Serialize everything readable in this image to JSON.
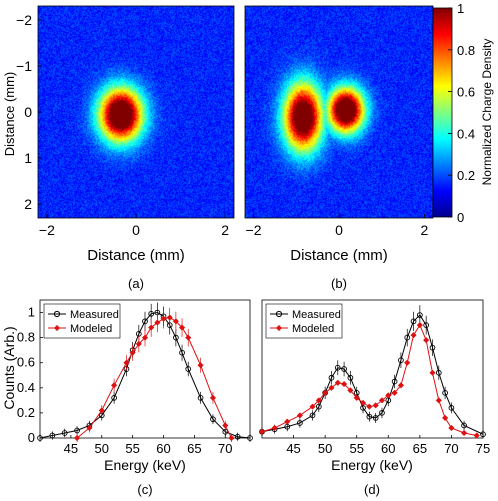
{
  "chart_data": [
    {
      "type": "heatmap",
      "panel": "(a)",
      "xlabel": "Distance (mm)",
      "ylabel": "Distance (mm)",
      "xlim": [
        -2.2,
        2.2
      ],
      "ylim": [
        -2.3,
        2.3
      ],
      "y_reversed": true,
      "xticks": [
        -2,
        0,
        2
      ],
      "yticks": [
        -2,
        -1,
        0,
        1,
        2
      ],
      "blobs": [
        {
          "x": -0.35,
          "y": 0.05,
          "sx": 0.32,
          "sy": 0.38,
          "peak": 1.0
        }
      ]
    },
    {
      "type": "heatmap",
      "panel": "(b)",
      "xlabel": "Distance (mm)",
      "xlim": [
        -2.2,
        2.2
      ],
      "ylim": [
        -2.3,
        2.3
      ],
      "y_reversed": true,
      "xticks": [
        -2,
        0,
        2
      ],
      "blobs": [
        {
          "x": -0.85,
          "y": 0.1,
          "sx": 0.3,
          "sy": 0.48,
          "peak": 0.95
        },
        {
          "x": 0.15,
          "y": -0.05,
          "sx": 0.28,
          "sy": 0.32,
          "peak": 1.0
        }
      ],
      "colorbar": {
        "label": "Normalized Charge Density",
        "range": [
          0,
          1
        ],
        "ticks": [
          0,
          0.2,
          0.4,
          0.6,
          0.8,
          1
        ],
        "tick_labels": [
          "0",
          "0.2",
          "0.4",
          "0.6",
          "0.8",
          "1"
        ]
      }
    },
    {
      "type": "line",
      "panel": "(c)",
      "xlabel": "Energy (keV)",
      "ylabel": "Counts (Arb.)",
      "xlim": [
        40,
        74
      ],
      "ylim": [
        0,
        1.1
      ],
      "xticks": [
        45,
        50,
        55,
        60,
        65,
        70
      ],
      "yticks": [
        0,
        0.2,
        0.4,
        0.6,
        0.8,
        1
      ],
      "legend": "top-left",
      "series": [
        {
          "name": "Measured",
          "color": "#000000",
          "marker": "circle",
          "error_bars": true,
          "x": [
            40,
            42,
            44,
            46,
            48,
            50,
            52,
            54,
            55,
            56,
            57,
            58,
            59,
            60,
            61,
            62,
            63,
            64,
            66,
            68,
            70,
            72,
            74
          ],
          "y": [
            0.0,
            0.02,
            0.04,
            0.06,
            0.1,
            0.18,
            0.32,
            0.55,
            0.7,
            0.83,
            0.93,
            0.99,
            1.0,
            0.97,
            0.9,
            0.8,
            0.68,
            0.55,
            0.32,
            0.15,
            0.05,
            0.01,
            0.0
          ]
        },
        {
          "name": "Modeled",
          "color": "#dd1111",
          "marker": "diamond",
          "error_bars": true,
          "x": [
            46,
            48,
            50,
            52,
            54,
            55,
            56,
            57,
            58,
            59,
            60,
            61,
            62,
            63,
            64,
            66,
            68,
            70,
            71
          ],
          "y": [
            0.0,
            0.08,
            0.22,
            0.42,
            0.6,
            0.68,
            0.75,
            0.8,
            0.88,
            0.92,
            0.95,
            0.96,
            0.93,
            0.88,
            0.8,
            0.58,
            0.32,
            0.1,
            0.0
          ]
        }
      ]
    },
    {
      "type": "line",
      "panel": "(d)",
      "xlabel": "Energy (keV)",
      "xlim": [
        40,
        75
      ],
      "ylim": [
        0,
        1.1
      ],
      "xticks": [
        45,
        50,
        55,
        60,
        65,
        70,
        75
      ],
      "legend": "top-left",
      "series": [
        {
          "name": "Measured",
          "color": "#000000",
          "marker": "circle",
          "error_bars": true,
          "x": [
            40,
            42,
            44,
            46,
            48,
            49,
            50,
            51,
            52,
            53,
            54,
            55,
            56,
            57,
            58,
            59,
            60,
            61,
            62,
            63,
            64,
            65,
            66,
            67,
            68,
            69,
            70,
            72,
            75
          ],
          "y": [
            0.05,
            0.07,
            0.09,
            0.12,
            0.18,
            0.25,
            0.36,
            0.48,
            0.56,
            0.55,
            0.48,
            0.36,
            0.24,
            0.17,
            0.16,
            0.2,
            0.3,
            0.45,
            0.62,
            0.8,
            0.93,
            0.98,
            0.9,
            0.72,
            0.52,
            0.36,
            0.24,
            0.1,
            0.03
          ]
        },
        {
          "name": "Modeled",
          "color": "#dd1111",
          "marker": "diamond",
          "error_bars": false,
          "x": [
            40,
            42,
            44,
            46,
            48,
            49,
            50,
            51,
            52,
            53,
            54,
            55,
            56,
            57,
            58,
            59,
            60,
            61,
            62,
            63,
            64,
            65,
            66,
            67,
            68,
            69,
            70,
            72,
            74
          ],
          "y": [
            0.05,
            0.08,
            0.13,
            0.18,
            0.25,
            0.3,
            0.36,
            0.4,
            0.44,
            0.43,
            0.38,
            0.32,
            0.28,
            0.25,
            0.26,
            0.3,
            0.34,
            0.36,
            0.42,
            0.6,
            0.82,
            0.9,
            0.78,
            0.52,
            0.3,
            0.16,
            0.08,
            0.04,
            0.02
          ]
        }
      ]
    }
  ]
}
